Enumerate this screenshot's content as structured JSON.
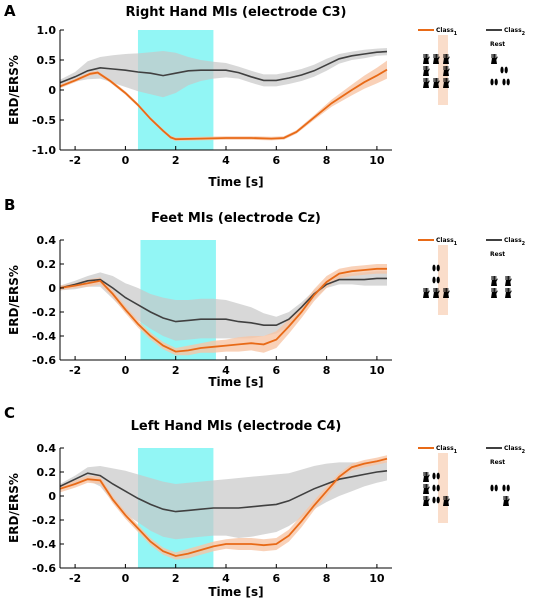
{
  "chart_data": [
    {
      "panel_label": "A",
      "type": "line",
      "title": "Right Hand MIs (electrode C3)",
      "xlabel": "Time [s]",
      "ylabel": "ERD/ERS%",
      "xlim": [
        -2.6,
        10.6
      ],
      "ylim": [
        -1.0,
        1.0
      ],
      "xticks": [
        -2,
        0,
        2,
        4,
        6,
        8,
        10
      ],
      "yticks": [
        -1.0,
        -0.5,
        0,
        0.5,
        1.0
      ],
      "ytick_labels": [
        "-1.0",
        "-0.5",
        "0",
        "0.5",
        "1.0"
      ],
      "highlight": {
        "x0": 0.5,
        "x1": 3.5,
        "color": "#7ff5f3"
      },
      "legend": {
        "class1": "Class",
        "class1_sub": "1",
        "class2": "Class",
        "class2_sub": "2",
        "rest": "Rest"
      },
      "series": [
        {
          "color": "#e86a17",
          "band_color": "#f7c6a6",
          "x": [
            -2.6,
            -2.0,
            -1.4,
            -1.1,
            -0.6,
            0,
            0.5,
            1.0,
            1.5,
            1.8,
            2.0,
            3.0,
            4.0,
            5.0,
            5.8,
            6.3,
            6.8,
            7.5,
            8.2,
            9.0,
            9.5,
            10.0,
            10.4
          ],
          "y": [
            0.06,
            0.16,
            0.27,
            0.29,
            0.15,
            -0.05,
            -0.25,
            -0.48,
            -0.68,
            -0.79,
            -0.82,
            -0.81,
            -0.8,
            -0.8,
            -0.81,
            -0.8,
            -0.7,
            -0.46,
            -0.22,
            0.0,
            0.13,
            0.24,
            0.34
          ],
          "spread": [
            0.03,
            0.03,
            0.03,
            0.03,
            0.03,
            0.03,
            0.03,
            0.03,
            0.03,
            0.03,
            0.03,
            0.03,
            0.03,
            0.03,
            0.03,
            0.03,
            0.03,
            0.04,
            0.06,
            0.09,
            0.11,
            0.13,
            0.15
          ]
        },
        {
          "color": "#404040",
          "band_color": "#c8c8c8",
          "x": [
            -2.6,
            -2.0,
            -1.5,
            -1.0,
            -0.5,
            0,
            0.5,
            1.0,
            1.5,
            2.0,
            2.5,
            3.0,
            3.5,
            4.0,
            4.5,
            5.0,
            5.5,
            6.0,
            6.5,
            7.0,
            7.5,
            8.0,
            8.5,
            9.0,
            9.5,
            10.0,
            10.4
          ],
          "y": [
            0.12,
            0.22,
            0.32,
            0.37,
            0.35,
            0.33,
            0.3,
            0.28,
            0.24,
            0.28,
            0.32,
            0.33,
            0.33,
            0.33,
            0.29,
            0.22,
            0.16,
            0.16,
            0.2,
            0.25,
            0.32,
            0.42,
            0.52,
            0.57,
            0.6,
            0.63,
            0.64
          ]
        }
      ],
      "class2_band": {
        "upper": [
          0.17,
          0.3,
          0.48,
          0.55,
          0.58,
          0.6,
          0.61,
          0.63,
          0.65,
          0.62,
          0.55,
          0.5,
          0.47,
          0.45,
          0.39,
          0.32,
          0.26,
          0.26,
          0.3,
          0.35,
          0.42,
          0.52,
          0.6,
          0.64,
          0.67,
          0.69,
          0.7
        ],
        "lower": [
          0.07,
          0.14,
          0.18,
          0.19,
          0.12,
          0.05,
          -0.02,
          -0.07,
          -0.12,
          -0.05,
          0.08,
          0.15,
          0.19,
          0.21,
          0.19,
          0.12,
          0.06,
          0.06,
          0.1,
          0.15,
          0.22,
          0.32,
          0.44,
          0.5,
          0.53,
          0.57,
          0.58
        ]
      }
    },
    {
      "panel_label": "B",
      "type": "line",
      "title": "Feet MIs (electrode Cz)",
      "xlabel": "Time [s]",
      "ylabel": "ERD/ERS%",
      "xlim": [
        -2.6,
        10.6
      ],
      "ylim": [
        -0.6,
        0.4
      ],
      "xticks": [
        -2,
        0,
        2,
        4,
        6,
        8,
        10
      ],
      "yticks": [
        -0.6,
        -0.4,
        -0.2,
        0,
        0.2,
        0.4
      ],
      "ytick_labels": [
        "-0.6",
        "-0.4",
        "-0.2",
        "0",
        "0.2",
        "0.4"
      ],
      "highlight": {
        "x0": 0.6,
        "x1": 3.6,
        "color": "#7ff5f3"
      },
      "legend": {
        "class1": "Class",
        "class1_sub": "1",
        "class2": "Class",
        "class2_sub": "2",
        "rest": "Rest"
      },
      "series": [
        {
          "color": "#e86a17",
          "band_color": "#f7c6a6",
          "x": [
            -2.6,
            -2.0,
            -1.5,
            -1.0,
            -0.5,
            0,
            0.5,
            1.0,
            1.5,
            2.0,
            2.5,
            3.0,
            3.5,
            4.0,
            4.5,
            5.0,
            5.5,
            6.0,
            6.5,
            7.0,
            7.5,
            8.0,
            8.5,
            9.0,
            9.5,
            10.0,
            10.4
          ],
          "y": [
            0.0,
            0.02,
            0.04,
            0.06,
            -0.05,
            -0.18,
            -0.3,
            -0.4,
            -0.48,
            -0.53,
            -0.52,
            -0.5,
            -0.49,
            -0.48,
            -0.47,
            -0.46,
            -0.47,
            -0.43,
            -0.32,
            -0.2,
            -0.06,
            0.05,
            0.12,
            0.14,
            0.15,
            0.16,
            0.16
          ],
          "spread": [
            0.02,
            0.02,
            0.03,
            0.03,
            0.03,
            0.03,
            0.03,
            0.03,
            0.03,
            0.03,
            0.04,
            0.04,
            0.05,
            0.05,
            0.06,
            0.06,
            0.07,
            0.07,
            0.06,
            0.05,
            0.05,
            0.05,
            0.04,
            0.04,
            0.04,
            0.04,
            0.04
          ]
        },
        {
          "color": "#404040",
          "band_color": "#c8c8c8",
          "x": [
            -2.6,
            -2.0,
            -1.5,
            -1.0,
            -0.5,
            0,
            0.5,
            1.0,
            1.5,
            2.0,
            2.5,
            3.0,
            3.5,
            4.0,
            4.5,
            5.0,
            5.5,
            6.0,
            6.5,
            7.0,
            7.5,
            8.0,
            8.5,
            9.0,
            9.5,
            10.0,
            10.4
          ],
          "y": [
            0.0,
            0.03,
            0.06,
            0.07,
            0.0,
            -0.08,
            -0.14,
            -0.2,
            -0.25,
            -0.28,
            -0.27,
            -0.26,
            -0.26,
            -0.26,
            -0.28,
            -0.29,
            -0.31,
            -0.31,
            -0.26,
            -0.16,
            -0.05,
            0.03,
            0.07,
            0.07,
            0.07,
            0.08,
            0.08
          ]
        }
      ],
      "class2_band": {
        "upper": [
          0.02,
          0.06,
          0.1,
          0.13,
          0.1,
          0.04,
          0.0,
          -0.05,
          -0.08,
          -0.1,
          -0.1,
          -0.09,
          -0.09,
          -0.1,
          -0.13,
          -0.16,
          -0.21,
          -0.24,
          -0.2,
          -0.12,
          -0.02,
          0.06,
          0.11,
          0.12,
          0.13,
          0.14,
          0.14
        ],
        "lower": [
          -0.02,
          -0.01,
          0.01,
          0.01,
          -0.09,
          -0.2,
          -0.27,
          -0.34,
          -0.4,
          -0.44,
          -0.43,
          -0.42,
          -0.42,
          -0.42,
          -0.42,
          -0.42,
          -0.4,
          -0.38,
          -0.32,
          -0.21,
          -0.09,
          0.0,
          0.03,
          0.03,
          0.02,
          0.02,
          0.02
        ]
      }
    },
    {
      "panel_label": "C",
      "type": "line",
      "title": "Left Hand MIs (electrode C4)",
      "xlabel": "Time [s]",
      "ylabel": "ERD/ERS%",
      "xlim": [
        -2.6,
        10.6
      ],
      "ylim": [
        -0.6,
        0.4
      ],
      "xticks": [
        -2,
        0,
        2,
        4,
        6,
        8,
        10
      ],
      "yticks": [
        -0.6,
        -0.4,
        -0.2,
        0,
        0.2,
        0.4
      ],
      "ytick_labels": [
        "-0.6",
        "-0.4",
        "-0.2",
        "0",
        "0.2",
        "0.4"
      ],
      "highlight": {
        "x0": 0.5,
        "x1": 3.5,
        "color": "#7ff5f3"
      },
      "legend": {
        "class1": "Class",
        "class1_sub": "1",
        "class2": "Class",
        "class2_sub": "2",
        "rest": "Rest"
      },
      "series": [
        {
          "color": "#e86a17",
          "band_color": "#f7c6a6",
          "x": [
            -2.6,
            -2.0,
            -1.5,
            -1.0,
            -0.5,
            0,
            0.5,
            1.0,
            1.5,
            2.0,
            2.5,
            3.0,
            3.5,
            4.0,
            4.5,
            5.0,
            5.5,
            6.0,
            6.5,
            7.0,
            7.5,
            8.0,
            8.5,
            9.0,
            9.5,
            10.0,
            10.4
          ],
          "y": [
            0.06,
            0.1,
            0.14,
            0.13,
            -0.03,
            -0.16,
            -0.27,
            -0.38,
            -0.46,
            -0.5,
            -0.48,
            -0.45,
            -0.42,
            -0.4,
            -0.4,
            -0.4,
            -0.41,
            -0.4,
            -0.33,
            -0.21,
            -0.08,
            0.04,
            0.16,
            0.24,
            0.27,
            0.29,
            0.31
          ],
          "spread": [
            0.03,
            0.03,
            0.03,
            0.03,
            0.03,
            0.03,
            0.03,
            0.03,
            0.03,
            0.03,
            0.04,
            0.04,
            0.04,
            0.04,
            0.05,
            0.05,
            0.05,
            0.05,
            0.05,
            0.05,
            0.04,
            0.04,
            0.03,
            0.03,
            0.03,
            0.03,
            0.03
          ]
        },
        {
          "color": "#404040",
          "band_color": "#c8c8c8",
          "x": [
            -2.6,
            -2.0,
            -1.5,
            -1.0,
            -0.5,
            0,
            0.5,
            1.0,
            1.5,
            2.0,
            2.5,
            3.0,
            3.5,
            4.0,
            4.5,
            5.0,
            5.5,
            6.0,
            6.5,
            7.0,
            7.5,
            8.0,
            8.5,
            9.0,
            9.5,
            10.0,
            10.4
          ],
          "y": [
            0.08,
            0.14,
            0.19,
            0.17,
            0.1,
            0.04,
            -0.02,
            -0.07,
            -0.11,
            -0.13,
            -0.12,
            -0.11,
            -0.1,
            -0.1,
            -0.1,
            -0.09,
            -0.08,
            -0.07,
            -0.04,
            0.01,
            0.06,
            0.1,
            0.14,
            0.16,
            0.18,
            0.2,
            0.21
          ]
        }
      ],
      "class2_band": {
        "upper": [
          0.1,
          0.17,
          0.24,
          0.25,
          0.23,
          0.21,
          0.18,
          0.15,
          0.12,
          0.1,
          0.11,
          0.12,
          0.13,
          0.14,
          0.15,
          0.16,
          0.17,
          0.18,
          0.19,
          0.22,
          0.25,
          0.27,
          0.28,
          0.28,
          0.28,
          0.29,
          0.29
        ],
        "lower": [
          0.06,
          0.1,
          0.13,
          0.08,
          -0.05,
          -0.15,
          -0.22,
          -0.29,
          -0.34,
          -0.36,
          -0.35,
          -0.34,
          -0.33,
          -0.33,
          -0.35,
          -0.34,
          -0.32,
          -0.3,
          -0.25,
          -0.18,
          -0.11,
          -0.05,
          0.0,
          0.04,
          0.08,
          0.11,
          0.13
        ]
      }
    }
  ]
}
